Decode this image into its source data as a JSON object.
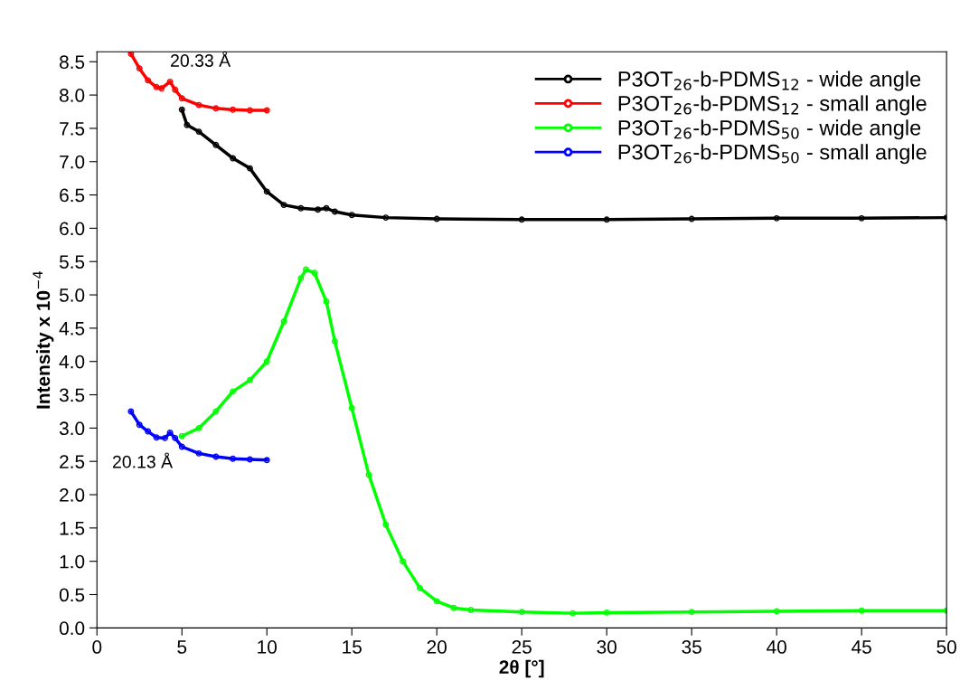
{
  "chart_data": {
    "type": "line",
    "xlabel": "2θ [°]",
    "ylabel": "Intensity x 10$^{−4}$",
    "xlim": [
      0,
      50
    ],
    "xticks": [
      0,
      5,
      10,
      15,
      20,
      25,
      30,
      35,
      40,
      45,
      50
    ],
    "ylim": [
      0,
      8.65
    ],
    "yticks": [
      {
        "value": 0,
        "label": "0.0"
      },
      0.5,
      {
        "value": 1,
        "label": "1.0"
      },
      1.5,
      {
        "value": 2,
        "label": "2.0"
      },
      2.5,
      {
        "value": 3,
        "label": "3.0"
      },
      3.5,
      {
        "value": 4,
        "label": "4.0"
      },
      4.5,
      {
        "value": 5,
        "label": "5.0"
      },
      5.5,
      {
        "value": 6,
        "label": "6.0"
      },
      6.5,
      {
        "value": 7,
        "label": "7.0"
      },
      7.5,
      {
        "value": 8,
        "label": "8.0"
      },
      8.5
    ],
    "grid": false,
    "legend": "top right",
    "marker": "circle",
    "line_style": "solid",
    "series": [
      {
        "name": "P3OT$_{26}$-b-PDMS$_{12}$ - wide angle",
        "color": "#000000",
        "x": [
          5.0,
          5.3,
          6,
          7,
          8,
          9,
          10,
          11,
          12,
          13,
          13.5,
          14,
          15,
          17,
          20,
          25,
          30,
          35,
          40,
          45,
          50
        ],
        "values": [
          7.78,
          7.55,
          7.45,
          7.25,
          7.05,
          6.9,
          6.55,
          6.35,
          6.3,
          6.28,
          6.3,
          6.25,
          6.2,
          6.16,
          6.14,
          6.13,
          6.13,
          6.14,
          6.15,
          6.15,
          6.16
        ]
      },
      {
        "name": "P3OT$_{26}$-b-PDMS$_{12}$ - small angle",
        "color": "#ff0000",
        "x": [
          2,
          2.5,
          3,
          3.5,
          3.8,
          4.3,
          4.6,
          5,
          6,
          7,
          8,
          9,
          10
        ],
        "values": [
          8.62,
          8.4,
          8.22,
          8.12,
          8.1,
          8.2,
          8.08,
          7.95,
          7.85,
          7.8,
          7.78,
          7.77,
          7.77
        ]
      },
      {
        "name": "P3OT$_{26}$-b-PDMS$_{50}$ - wide angle",
        "color": "#00ff00",
        "x": [
          5,
          6,
          7,
          8,
          9,
          10,
          11,
          12,
          12.3,
          12.8,
          13.5,
          14,
          15,
          16,
          17,
          18,
          19,
          20,
          21,
          22,
          25,
          28,
          30,
          35,
          40,
          45,
          50
        ],
        "values": [
          2.88,
          3.0,
          3.25,
          3.55,
          3.72,
          4.0,
          4.6,
          5.25,
          5.38,
          5.33,
          4.9,
          4.3,
          3.3,
          2.3,
          1.55,
          1.0,
          0.6,
          0.4,
          0.3,
          0.27,
          0.24,
          0.22,
          0.23,
          0.24,
          0.25,
          0.26,
          0.26
        ]
      },
      {
        "name": "P3OT$_{26}$-b-PDMS$_{50}$ - small angle",
        "color": "#0000ff",
        "x": [
          2,
          2.5,
          3,
          3.5,
          4,
          4.3,
          4.6,
          5,
          6,
          7,
          8,
          9,
          10
        ],
        "values": [
          3.25,
          3.05,
          2.95,
          2.86,
          2.85,
          2.93,
          2.85,
          2.72,
          2.62,
          2.57,
          2.54,
          2.53,
          2.52
        ]
      }
    ],
    "annotations": [
      {
        "text": "20.33 Å",
        "x": 4.3,
        "y": 8.2
      },
      {
        "text": "20.13 Å",
        "x": 4.3,
        "y": 2.93
      }
    ]
  }
}
